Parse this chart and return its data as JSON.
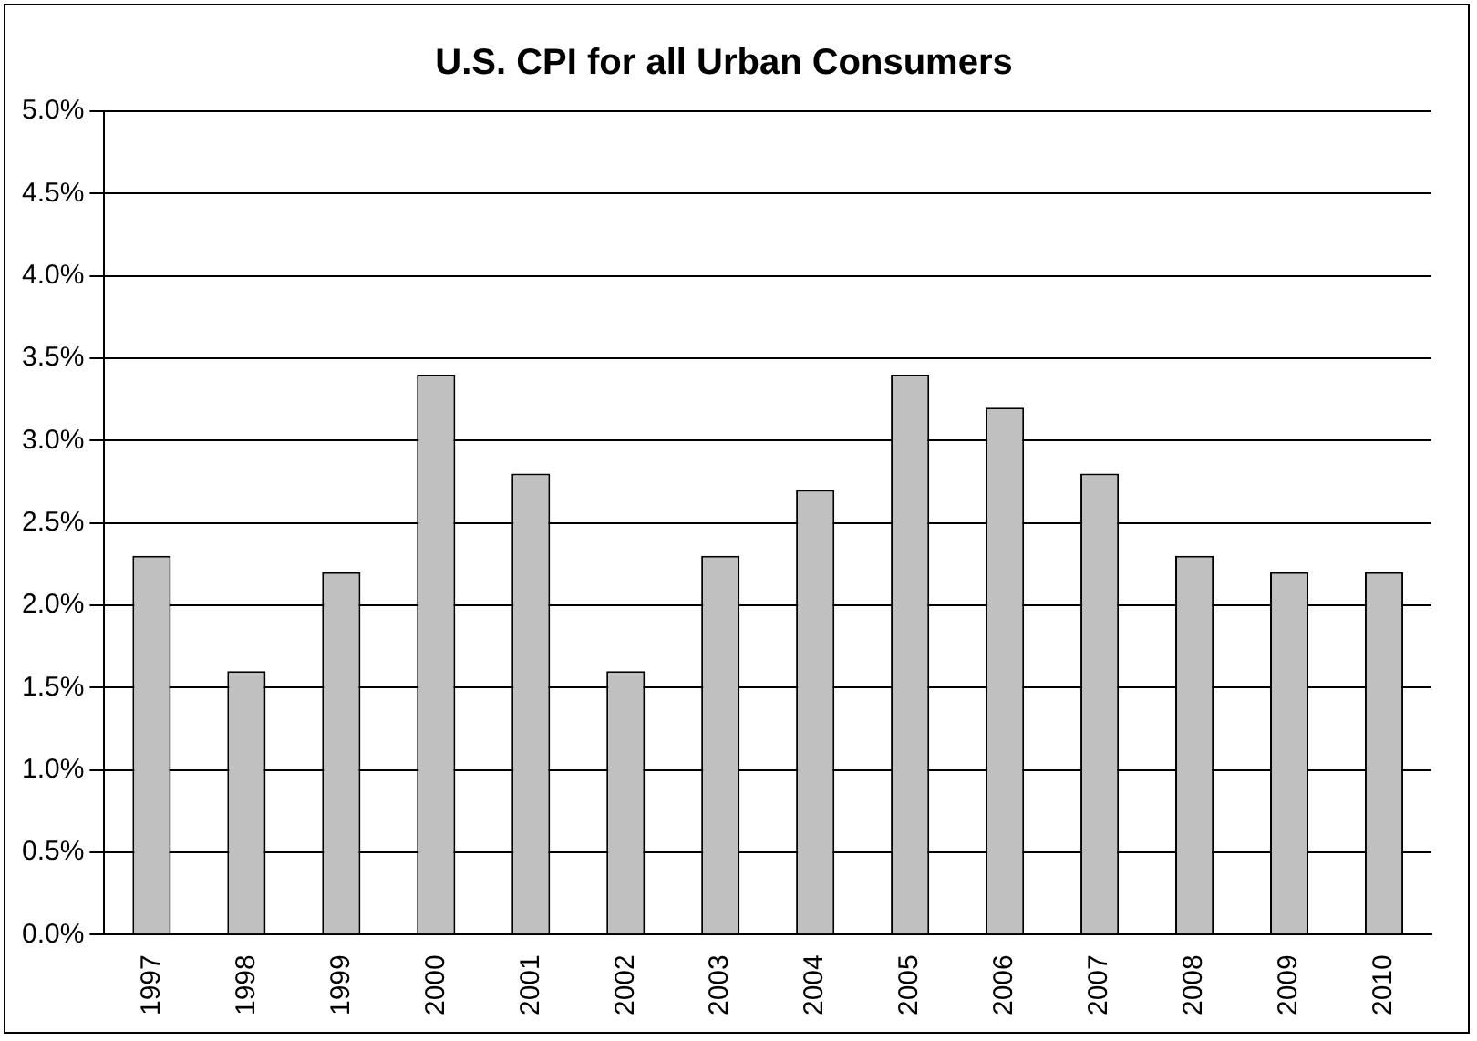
{
  "chart_data": {
    "type": "bar",
    "title": "U.S. CPI for all Urban Consumers",
    "categories": [
      "1997",
      "1998",
      "1999",
      "2000",
      "2001",
      "2002",
      "2003",
      "2004",
      "2005",
      "2006",
      "2007",
      "2008",
      "2009",
      "2010"
    ],
    "values": [
      2.3,
      1.6,
      2.2,
      3.4,
      2.8,
      1.6,
      2.3,
      2.7,
      3.4,
      3.2,
      2.8,
      2.3,
      2.2,
      2.2
    ],
    "color": "#c0c0c0",
    "ylim": [
      0,
      5
    ],
    "yticks": [
      {
        "value": 0,
        "label": "0.0%"
      },
      {
        "value": 0.5,
        "label": "0.5%"
      },
      {
        "value": 1,
        "label": "1.0%"
      },
      {
        "value": 1.5,
        "label": "1.5%"
      },
      {
        "value": 2,
        "label": "2.0%"
      },
      {
        "value": 2.5,
        "label": "2.5%"
      },
      {
        "value": 3,
        "label": "3.0%"
      },
      {
        "value": 3.5,
        "label": "3.5%"
      },
      {
        "value": 4,
        "label": "4.0%"
      },
      {
        "value": 4.5,
        "label": "4.5%"
      },
      {
        "value": 5,
        "label": "5.0%"
      }
    ],
    "grid": "y",
    "legend": false
  }
}
